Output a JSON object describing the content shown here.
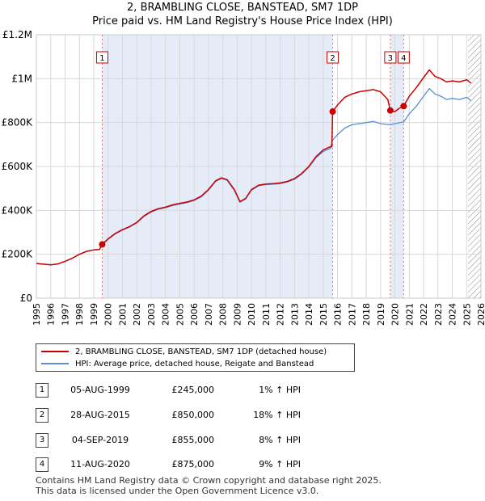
{
  "chart_data": {
    "type": "line",
    "title": "2, BRAMBLING CLOSE, BANSTEAD, SM7 1DP",
    "subtitle": "Price paid vs. HM Land Registry's House Price Index (HPI)",
    "xlabel": "",
    "ylabel": "",
    "xlim": [
      1995,
      2026
    ],
    "ylim": [
      0,
      1200000
    ],
    "x_ticks": [
      "1995",
      "1996",
      "1997",
      "1998",
      "1999",
      "2000",
      "2001",
      "2002",
      "2003",
      "2004",
      "2005",
      "2006",
      "2007",
      "2008",
      "2009",
      "2010",
      "2011",
      "2012",
      "2013",
      "2014",
      "2015",
      "2016",
      "2017",
      "2018",
      "2019",
      "2020",
      "2021",
      "2022",
      "2023",
      "2024",
      "2025",
      "2026"
    ],
    "y_ticks": [
      {
        "value": 0,
        "label": "£0"
      },
      {
        "value": 200000,
        "label": "£200K"
      },
      {
        "value": 400000,
        "label": "£400K"
      },
      {
        "value": 600000,
        "label": "£600K"
      },
      {
        "value": 800000,
        "label": "£800K"
      },
      {
        "value": 1000000,
        "label": "£1M"
      },
      {
        "value": 1200000,
        "label": "£1.2M"
      }
    ],
    "grid": true,
    "series": [
      {
        "name": "2, BRAMBLING CLOSE, BANSTEAD, SM7 1DP (detached house)",
        "color": "#cc0000",
        "points": [
          [
            1995.0,
            158000
          ],
          [
            1995.5,
            155000
          ],
          [
            1996.0,
            152000
          ],
          [
            1996.5,
            156000
          ],
          [
            1997.0,
            168000
          ],
          [
            1997.5,
            182000
          ],
          [
            1998.0,
            200000
          ],
          [
            1998.5,
            213000
          ],
          [
            1999.0,
            220000
          ],
          [
            1999.4,
            222000
          ],
          [
            1999.59,
            245000
          ],
          [
            2000.0,
            270000
          ],
          [
            2000.5,
            295000
          ],
          [
            2001.0,
            312000
          ],
          [
            2001.5,
            326000
          ],
          [
            2002.0,
            345000
          ],
          [
            2002.5,
            375000
          ],
          [
            2003.0,
            395000
          ],
          [
            2003.5,
            408000
          ],
          [
            2004.0,
            415000
          ],
          [
            2004.5,
            425000
          ],
          [
            2005.0,
            432000
          ],
          [
            2005.5,
            438000
          ],
          [
            2006.0,
            448000
          ],
          [
            2006.5,
            465000
          ],
          [
            2007.0,
            495000
          ],
          [
            2007.5,
            535000
          ],
          [
            2007.9,
            548000
          ],
          [
            2008.3,
            540000
          ],
          [
            2008.8,
            495000
          ],
          [
            2009.2,
            440000
          ],
          [
            2009.6,
            455000
          ],
          [
            2010.0,
            495000
          ],
          [
            2010.5,
            515000
          ],
          [
            2011.0,
            520000
          ],
          [
            2011.5,
            522000
          ],
          [
            2012.0,
            525000
          ],
          [
            2012.5,
            532000
          ],
          [
            2013.0,
            545000
          ],
          [
            2013.5,
            568000
          ],
          [
            2014.0,
            600000
          ],
          [
            2014.5,
            645000
          ],
          [
            2015.0,
            675000
          ],
          [
            2015.5,
            690000
          ],
          [
            2015.6,
            690000
          ],
          [
            2015.66,
            850000
          ],
          [
            2016.0,
            880000
          ],
          [
            2016.5,
            915000
          ],
          [
            2017.0,
            930000
          ],
          [
            2017.5,
            940000
          ],
          [
            2018.0,
            945000
          ],
          [
            2018.5,
            950000
          ],
          [
            2019.0,
            940000
          ],
          [
            2019.5,
            905000
          ],
          [
            2019.68,
            855000
          ],
          [
            2020.0,
            850000
          ],
          [
            2020.3,
            865000
          ],
          [
            2020.61,
            875000
          ],
          [
            2021.0,
            920000
          ],
          [
            2021.5,
            960000
          ],
          [
            2022.0,
            1005000
          ],
          [
            2022.4,
            1040000
          ],
          [
            2022.8,
            1010000
          ],
          [
            2023.2,
            1000000
          ],
          [
            2023.6,
            985000
          ],
          [
            2024.0,
            990000
          ],
          [
            2024.5,
            985000
          ],
          [
            2025.0,
            995000
          ],
          [
            2025.3,
            980000
          ]
        ]
      },
      {
        "name": "HPI: Average price, detached house, Reigate and Banstead",
        "color": "#5b8ed6",
        "points": [
          [
            1995.0,
            158000
          ],
          [
            1995.5,
            155000
          ],
          [
            1996.0,
            152000
          ],
          [
            1996.5,
            156000
          ],
          [
            1997.0,
            168000
          ],
          [
            1997.5,
            182000
          ],
          [
            1998.0,
            200000
          ],
          [
            1998.5,
            213000
          ],
          [
            1999.0,
            220000
          ],
          [
            1999.4,
            222000
          ],
          [
            1999.59,
            242000
          ],
          [
            2000.0,
            268000
          ],
          [
            2000.5,
            293000
          ],
          [
            2001.0,
            310000
          ],
          [
            2001.5,
            324000
          ],
          [
            2002.0,
            343000
          ],
          [
            2002.5,
            372000
          ],
          [
            2003.0,
            392000
          ],
          [
            2003.5,
            405000
          ],
          [
            2004.0,
            412000
          ],
          [
            2004.5,
            422000
          ],
          [
            2005.0,
            429000
          ],
          [
            2005.5,
            435000
          ],
          [
            2006.0,
            445000
          ],
          [
            2006.5,
            462000
          ],
          [
            2007.0,
            492000
          ],
          [
            2007.5,
            532000
          ],
          [
            2007.9,
            545000
          ],
          [
            2008.3,
            537000
          ],
          [
            2008.8,
            492000
          ],
          [
            2009.2,
            437000
          ],
          [
            2009.6,
            452000
          ],
          [
            2010.0,
            492000
          ],
          [
            2010.5,
            512000
          ],
          [
            2011.0,
            517000
          ],
          [
            2011.5,
            519000
          ],
          [
            2012.0,
            522000
          ],
          [
            2012.5,
            529000
          ],
          [
            2013.0,
            542000
          ],
          [
            2013.5,
            565000
          ],
          [
            2014.0,
            597000
          ],
          [
            2014.5,
            640000
          ],
          [
            2015.0,
            668000
          ],
          [
            2015.5,
            682000
          ],
          [
            2015.66,
            720000
          ],
          [
            2016.0,
            745000
          ],
          [
            2016.5,
            775000
          ],
          [
            2017.0,
            790000
          ],
          [
            2017.5,
            795000
          ],
          [
            2018.0,
            800000
          ],
          [
            2018.5,
            805000
          ],
          [
            2019.0,
            795000
          ],
          [
            2019.68,
            790000
          ],
          [
            2020.0,
            795000
          ],
          [
            2020.61,
            803000
          ],
          [
            2021.0,
            840000
          ],
          [
            2021.5,
            875000
          ],
          [
            2022.0,
            920000
          ],
          [
            2022.4,
            955000
          ],
          [
            2022.8,
            930000
          ],
          [
            2023.2,
            920000
          ],
          [
            2023.6,
            905000
          ],
          [
            2024.0,
            910000
          ],
          [
            2024.5,
            905000
          ],
          [
            2025.0,
            915000
          ],
          [
            2025.3,
            900000
          ]
        ]
      }
    ],
    "sales": [
      {
        "num": "1",
        "x": 1999.59,
        "price": 245000
      },
      {
        "num": "2",
        "x": 2015.66,
        "price": 850000
      },
      {
        "num": "3",
        "x": 2019.68,
        "price": 855000
      },
      {
        "num": "4",
        "x": 2020.61,
        "price": 875000
      }
    ],
    "shaded_ranges": [
      [
        1999.59,
        2015.66
      ],
      [
        2019.68,
        2020.61
      ]
    ],
    "hatched_from": 2025.1
  },
  "legend": {
    "property_label": "2, BRAMBLING CLOSE, BANSTEAD, SM7 1DP (detached house)",
    "hpi_label": "HPI: Average price, detached house, Reigate and Banstead",
    "property_color": "#cc0000",
    "hpi_color": "#5b8ed6"
  },
  "table": {
    "rows": [
      {
        "num": "1",
        "date": "05-AUG-1999",
        "price": "£245,000",
        "hpi": "1% ↑ HPI"
      },
      {
        "num": "2",
        "date": "28-AUG-2015",
        "price": "£850,000",
        "hpi": "18% ↑ HPI"
      },
      {
        "num": "3",
        "date": "04-SEP-2019",
        "price": "£855,000",
        "hpi": "8% ↑ HPI"
      },
      {
        "num": "4",
        "date": "11-AUG-2020",
        "price": "£875,000",
        "hpi": "9% ↑ HPI"
      }
    ]
  },
  "footer": {
    "line1": "Contains HM Land Registry data © Crown copyright and database right 2025.",
    "line2": "This data is licensed under the Open Government Licence v3.0."
  }
}
